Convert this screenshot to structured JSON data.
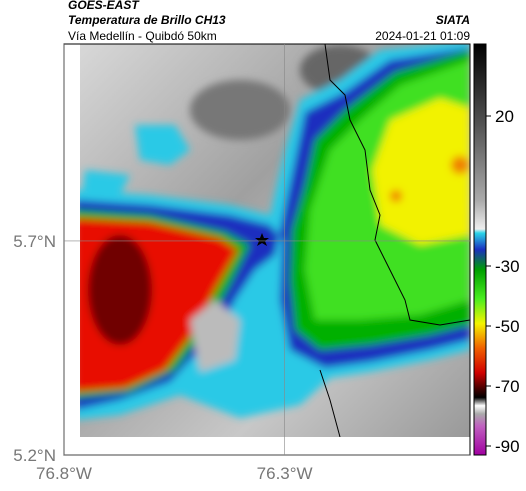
{
  "header": {
    "title": "GOES-EAST",
    "subtitle": "Temperatura de Brillo CH13",
    "region": "Vía Medellín - Quibdó 50km",
    "source": "SIATA",
    "timestamp": "2024-01-21 01:09"
  },
  "map": {
    "xlim": [
      -76.8,
      -75.88
    ],
    "ylim": [
      5.2,
      6.16
    ],
    "xticks": [
      {
        "value": -76.8,
        "label": "76.8°W"
      },
      {
        "value": -76.3,
        "label": "76.3°W"
      }
    ],
    "yticks": [
      {
        "value": 5.7,
        "label": "5.7°N"
      },
      {
        "value": 5.2,
        "label": "5.2°N"
      }
    ],
    "grid": true
  },
  "colorbar": {
    "lim": [
      -93,
      44
    ],
    "ticks": [
      20,
      -30,
      -50,
      -70,
      -90
    ]
  }
}
